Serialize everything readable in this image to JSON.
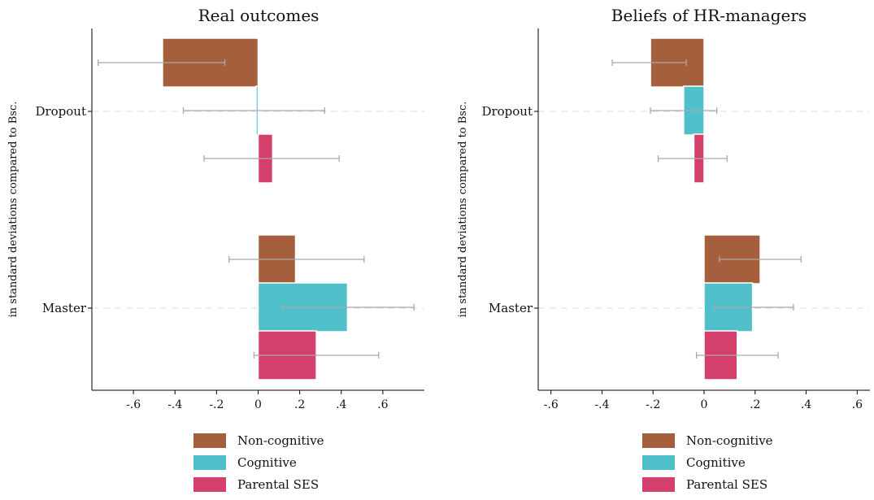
{
  "chart_data": [
    {
      "type": "bar",
      "orientation": "horizontal",
      "title": "Real outcomes",
      "ylabel": "in standard deviations compared to Bsc.",
      "xlabel": "",
      "categories": [
        "Dropout",
        "Master"
      ],
      "xlim": [
        -0.8,
        0.8
      ],
      "xticks": [
        -0.6,
        -0.4,
        -0.2,
        0,
        0.2,
        0.4,
        0.6
      ],
      "xtick_labels": [
        "-.6",
        "-.4",
        "-.2",
        "0",
        ".2",
        ".4",
        ".6"
      ],
      "series": [
        {
          "name": "Non-cognitive",
          "color": "#A65F3D",
          "values": [
            -0.46,
            0.18
          ],
          "ci_low": [
            -0.77,
            -0.14
          ],
          "ci_high": [
            -0.16,
            0.51
          ]
        },
        {
          "name": "Cognitive",
          "color": "#4FC0C9",
          "values": [
            -0.01,
            0.43
          ],
          "ci_low": [
            -0.36,
            0.12
          ],
          "ci_high": [
            0.32,
            0.75
          ]
        },
        {
          "name": "Parental SES",
          "color": "#D4406B",
          "values": [
            0.07,
            0.28
          ],
          "ci_low": [
            -0.26,
            -0.02
          ],
          "ci_high": [
            0.39,
            0.58
          ]
        }
      ],
      "grid": "horizontal dashed at categories",
      "legend": "bottom"
    },
    {
      "type": "bar",
      "orientation": "horizontal",
      "title": "Beliefs of HR-managers",
      "ylabel": "in standard deviations compared to Bsc.",
      "xlabel": "",
      "categories": [
        "Dropout",
        "Master"
      ],
      "xlim": [
        -0.65,
        0.65
      ],
      "xticks": [
        -0.6,
        -0.4,
        -0.2,
        0,
        0.2,
        0.4,
        0.6
      ],
      "xtick_labels": [
        "-.6",
        "-.4",
        "-.2",
        "0",
        ".2",
        ".4",
        ".6"
      ],
      "series": [
        {
          "name": "Non-cognitive",
          "color": "#A65F3D",
          "values": [
            -0.21,
            0.22
          ],
          "ci_low": [
            -0.36,
            0.06
          ],
          "ci_high": [
            -0.07,
            0.38
          ]
        },
        {
          "name": "Cognitive",
          "color": "#4FC0C9",
          "values": [
            -0.08,
            0.19
          ],
          "ci_low": [
            -0.21,
            0.04
          ],
          "ci_high": [
            0.05,
            0.35
          ]
        },
        {
          "name": "Parental SES",
          "color": "#D4406B",
          "values": [
            -0.04,
            0.13
          ],
          "ci_low": [
            -0.18,
            -0.03
          ],
          "ci_high": [
            0.09,
            0.29
          ]
        }
      ],
      "grid": "horizontal dashed at categories",
      "legend": "bottom"
    }
  ]
}
